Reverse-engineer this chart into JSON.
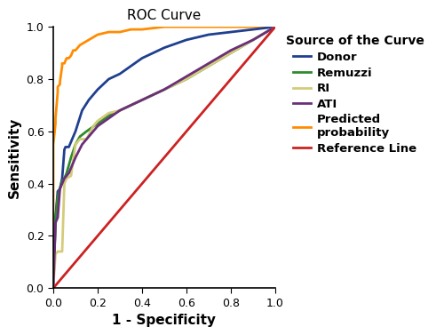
{
  "title": "ROC Curve",
  "xlabel": "1 - Specificity",
  "ylabel": "Sensitivity",
  "legend_title": "Source of the Curve",
  "xlim": [
    0.0,
    1.0
  ],
  "ylim": [
    0.0,
    1.0
  ],
  "xticks": [
    0.0,
    0.2,
    0.4,
    0.6,
    0.8,
    1.0
  ],
  "yticks": [
    0.0,
    0.2,
    0.4,
    0.6,
    0.8,
    1.0
  ],
  "curves": {
    "Donor": {
      "color": "#1F3F8F",
      "linewidth": 2.0,
      "points": [
        [
          0.0,
          0.0
        ],
        [
          0.01,
          0.27
        ],
        [
          0.02,
          0.37
        ],
        [
          0.03,
          0.38
        ],
        [
          0.04,
          0.42
        ],
        [
          0.05,
          0.53
        ],
        [
          0.055,
          0.54
        ],
        [
          0.07,
          0.54
        ],
        [
          0.1,
          0.6
        ],
        [
          0.13,
          0.68
        ],
        [
          0.16,
          0.72
        ],
        [
          0.2,
          0.76
        ],
        [
          0.25,
          0.8
        ],
        [
          0.3,
          0.82
        ],
        [
          0.35,
          0.85
        ],
        [
          0.4,
          0.88
        ],
        [
          0.45,
          0.9
        ],
        [
          0.5,
          0.92
        ],
        [
          0.6,
          0.95
        ],
        [
          0.7,
          0.97
        ],
        [
          0.8,
          0.98
        ],
        [
          0.9,
          0.99
        ],
        [
          1.0,
          1.0
        ]
      ]
    },
    "Remuzzi": {
      "color": "#2E8B2E",
      "linewidth": 2.0,
      "points": [
        [
          0.0,
          0.0
        ],
        [
          0.01,
          0.26
        ],
        [
          0.02,
          0.35
        ],
        [
          0.03,
          0.38
        ],
        [
          0.04,
          0.41
        ],
        [
          0.05,
          0.42
        ],
        [
          0.06,
          0.44
        ],
        [
          0.08,
          0.5
        ],
        [
          0.1,
          0.55
        ],
        [
          0.12,
          0.58
        ],
        [
          0.15,
          0.6
        ],
        [
          0.2,
          0.63
        ],
        [
          0.25,
          0.66
        ],
        [
          0.3,
          0.68
        ],
        [
          0.35,
          0.7
        ],
        [
          0.4,
          0.72
        ],
        [
          0.5,
          0.76
        ],
        [
          0.6,
          0.8
        ],
        [
          0.7,
          0.85
        ],
        [
          0.8,
          0.9
        ],
        [
          0.9,
          0.95
        ],
        [
          1.0,
          1.0
        ]
      ]
    },
    "RI": {
      "color": "#D4CC7A",
      "linewidth": 2.0,
      "points": [
        [
          0.0,
          0.0
        ],
        [
          0.01,
          0.13
        ],
        [
          0.02,
          0.14
        ],
        [
          0.04,
          0.14
        ],
        [
          0.05,
          0.4
        ],
        [
          0.06,
          0.42
        ],
        [
          0.08,
          0.43
        ],
        [
          0.1,
          0.55
        ],
        [
          0.12,
          0.57
        ],
        [
          0.15,
          0.57
        ],
        [
          0.18,
          0.62
        ],
        [
          0.2,
          0.64
        ],
        [
          0.25,
          0.67
        ],
        [
          0.3,
          0.68
        ],
        [
          0.35,
          0.7
        ],
        [
          0.4,
          0.72
        ],
        [
          0.5,
          0.76
        ],
        [
          0.6,
          0.8
        ],
        [
          0.7,
          0.85
        ],
        [
          0.8,
          0.9
        ],
        [
          0.9,
          0.95
        ],
        [
          1.0,
          1.0
        ]
      ]
    },
    "ATI": {
      "color": "#6B2F7A",
      "linewidth": 2.0,
      "points": [
        [
          0.0,
          0.0
        ],
        [
          0.01,
          0.25
        ],
        [
          0.02,
          0.27
        ],
        [
          0.03,
          0.38
        ],
        [
          0.04,
          0.4
        ],
        [
          0.05,
          0.42
        ],
        [
          0.07,
          0.44
        ],
        [
          0.1,
          0.5
        ],
        [
          0.13,
          0.55
        ],
        [
          0.16,
          0.58
        ],
        [
          0.2,
          0.62
        ],
        [
          0.25,
          0.65
        ],
        [
          0.3,
          0.68
        ],
        [
          0.35,
          0.7
        ],
        [
          0.4,
          0.72
        ],
        [
          0.5,
          0.76
        ],
        [
          0.6,
          0.81
        ],
        [
          0.7,
          0.86
        ],
        [
          0.8,
          0.91
        ],
        [
          0.9,
          0.95
        ],
        [
          1.0,
          1.0
        ]
      ]
    },
    "Predicted probability": {
      "color": "#FF8C00",
      "linewidth": 2.0,
      "points": [
        [
          0.0,
          0.0
        ],
        [
          0.0,
          0.39
        ],
        [
          0.0,
          0.55
        ],
        [
          0.01,
          0.63
        ],
        [
          0.01,
          0.65
        ],
        [
          0.02,
          0.75
        ],
        [
          0.02,
          0.77
        ],
        [
          0.03,
          0.78
        ],
        [
          0.03,
          0.79
        ],
        [
          0.04,
          0.85
        ],
        [
          0.04,
          0.86
        ],
        [
          0.05,
          0.86
        ],
        [
          0.06,
          0.88
        ],
        [
          0.07,
          0.88
        ],
        [
          0.08,
          0.89
        ],
        [
          0.09,
          0.91
        ],
        [
          0.1,
          0.91
        ],
        [
          0.11,
          0.92
        ],
        [
          0.12,
          0.93
        ],
        [
          0.14,
          0.94
        ],
        [
          0.16,
          0.95
        ],
        [
          0.18,
          0.96
        ],
        [
          0.2,
          0.97
        ],
        [
          0.25,
          0.98
        ],
        [
          0.3,
          0.98
        ],
        [
          0.35,
          0.99
        ],
        [
          0.4,
          0.99
        ],
        [
          0.5,
          1.0
        ],
        [
          0.6,
          1.0
        ],
        [
          0.7,
          1.0
        ],
        [
          0.8,
          1.0
        ],
        [
          0.9,
          1.0
        ],
        [
          1.0,
          1.0
        ]
      ]
    },
    "Reference Line": {
      "color": "#CC2222",
      "linewidth": 2.0,
      "points": [
        [
          0.0,
          0.0
        ],
        [
          1.0,
          1.0
        ]
      ]
    }
  },
  "legend_entries": [
    "Donor",
    "Remuzzi",
    "RI",
    "ATI",
    "Predicted\nprobability",
    "Reference Line"
  ],
  "legend_keys": [
    "Donor",
    "Remuzzi",
    "RI",
    "ATI",
    "Predicted probability",
    "Reference Line"
  ],
  "background_color": "#FFFFFF",
  "title_fontsize": 11,
  "axis_label_fontsize": 11,
  "tick_fontsize": 9,
  "legend_fontsize": 9.5,
  "legend_title_fontsize": 10
}
